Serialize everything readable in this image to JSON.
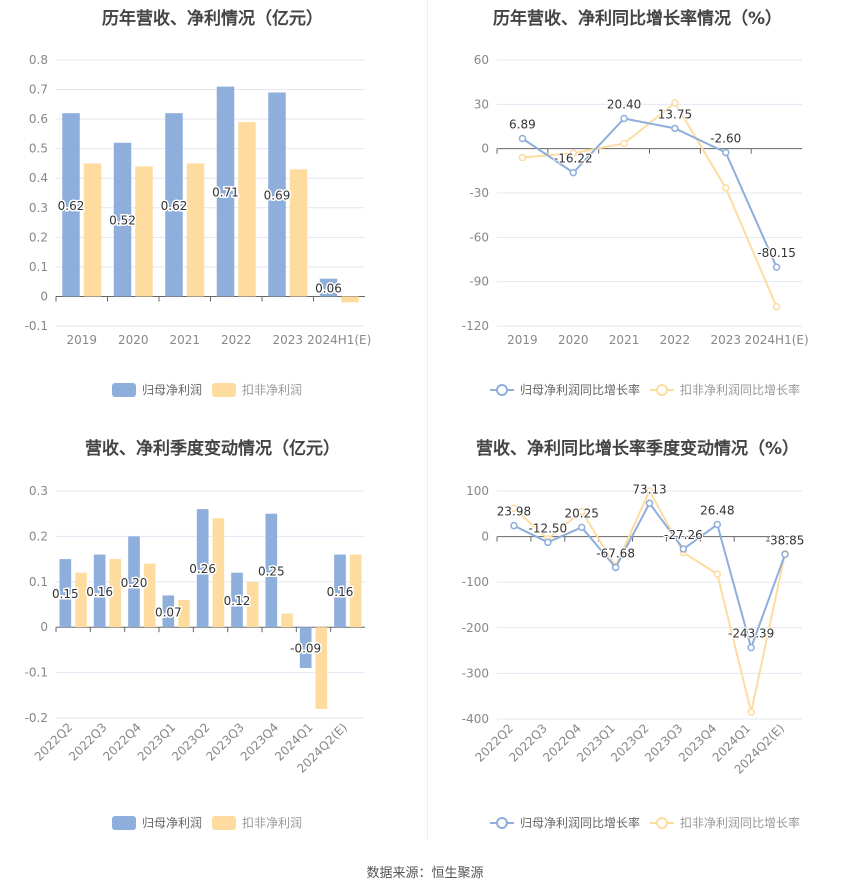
{
  "source": "数据来源：恒生聚源",
  "colors": {
    "blue": "#8eaedb",
    "yellow": "#fedca0",
    "grid": "#e3e7f2",
    "axis": "#666"
  },
  "chart_data": [
    {
      "type": "bar",
      "title": "历年营收、净利情况（亿元）",
      "categories": [
        "2019",
        "2020",
        "2021",
        "2022",
        "2023",
        "2024H1(E)"
      ],
      "series": [
        {
          "name": "归母净利润",
          "values": [
            0.62,
            0.52,
            0.62,
            0.71,
            0.69,
            0.06
          ],
          "labels": [
            "0.62",
            "0.52",
            "0.62",
            "0.71",
            "0.69",
            "0.06"
          ]
        },
        {
          "name": "扣非净利润",
          "values": [
            0.45,
            0.44,
            0.45,
            0.59,
            0.43,
            -0.02
          ]
        }
      ],
      "ylim": [
        -0.1,
        0.8
      ],
      "yticks": [
        "0.8",
        "0.7",
        "0.6",
        "0.5",
        "0.4",
        "0.3",
        "0.2",
        "0.1",
        "0",
        "-0.1"
      ],
      "legend": "bottom"
    },
    {
      "type": "line",
      "title": "历年营收、净利同比增长率情况（%）",
      "categories": [
        "2019",
        "2020",
        "2021",
        "2022",
        "2023",
        "2024H1(E)"
      ],
      "series": [
        {
          "name": "归母净利润同比增长率",
          "values": [
            6.89,
            -16.22,
            20.4,
            13.75,
            -2.6,
            -80.15
          ],
          "labels": [
            "6.89",
            "-16.22",
            "20.40",
            "13.75",
            "-2.60",
            "-80.15"
          ]
        },
        {
          "name": "扣非净利润同比增长率",
          "values": [
            -6,
            -3,
            3.5,
            31,
            -26.5,
            -107
          ]
        }
      ],
      "ylim": [
        -120,
        60
      ],
      "yticks": [
        "60",
        "30",
        "0",
        "-30",
        "-60",
        "-90",
        "-120"
      ],
      "legend": "bottom"
    },
    {
      "type": "bar",
      "title": "营收、净利季度变动情况（亿元）",
      "categories": [
        "2022Q2",
        "2022Q3",
        "2022Q4",
        "2023Q1",
        "2023Q2",
        "2023Q3",
        "2023Q4",
        "2024Q1",
        "2024Q2(E)"
      ],
      "series": [
        {
          "name": "归母净利润",
          "values": [
            0.15,
            0.16,
            0.2,
            0.07,
            0.26,
            0.12,
            0.25,
            -0.09,
            0.16
          ],
          "labels": [
            "0.15",
            "0.16",
            "0.20",
            "0.07",
            "0.26",
            "0.12",
            "0.25",
            "-0.09",
            "0.16"
          ]
        },
        {
          "name": "扣非净利润",
          "values": [
            0.12,
            0.15,
            0.14,
            0.06,
            0.24,
            0.1,
            0.03,
            -0.18,
            0.16
          ]
        }
      ],
      "ylim": [
        -0.2,
        0.3
      ],
      "yticks": [
        "0.3",
        "0.2",
        "0.1",
        "0",
        "-0.1",
        "-0.2"
      ],
      "legend": "bottom"
    },
    {
      "type": "line",
      "title": "营收、净利同比增长率季度变动情况（%）",
      "categories": [
        "2022Q2",
        "2022Q3",
        "2022Q4",
        "2023Q1",
        "2023Q2",
        "2023Q3",
        "2023Q4",
        "2024Q1",
        "2024Q2(E)"
      ],
      "series": [
        {
          "name": "归母净利润同比增长率",
          "values": [
            23.98,
            -12.5,
            20.25,
            -67.68,
            73.13,
            -27.26,
            26.48,
            -243.39,
            -38.85
          ],
          "labels": [
            "23.98",
            "-12.50",
            "20.25",
            "-67.68",
            "73.13",
            "-27.26",
            "26.48",
            "-243.39",
            "-38.85"
          ]
        },
        {
          "name": "扣非净利润同比增长率",
          "values": [
            62,
            -5,
            55,
            -65,
            100,
            -35,
            -82,
            -385,
            -37
          ]
        }
      ],
      "ylim": [
        -400,
        100
      ],
      "yticks": [
        "100",
        "0",
        "-100",
        "-200",
        "-300",
        "-400"
      ],
      "legend": "bottom"
    }
  ]
}
